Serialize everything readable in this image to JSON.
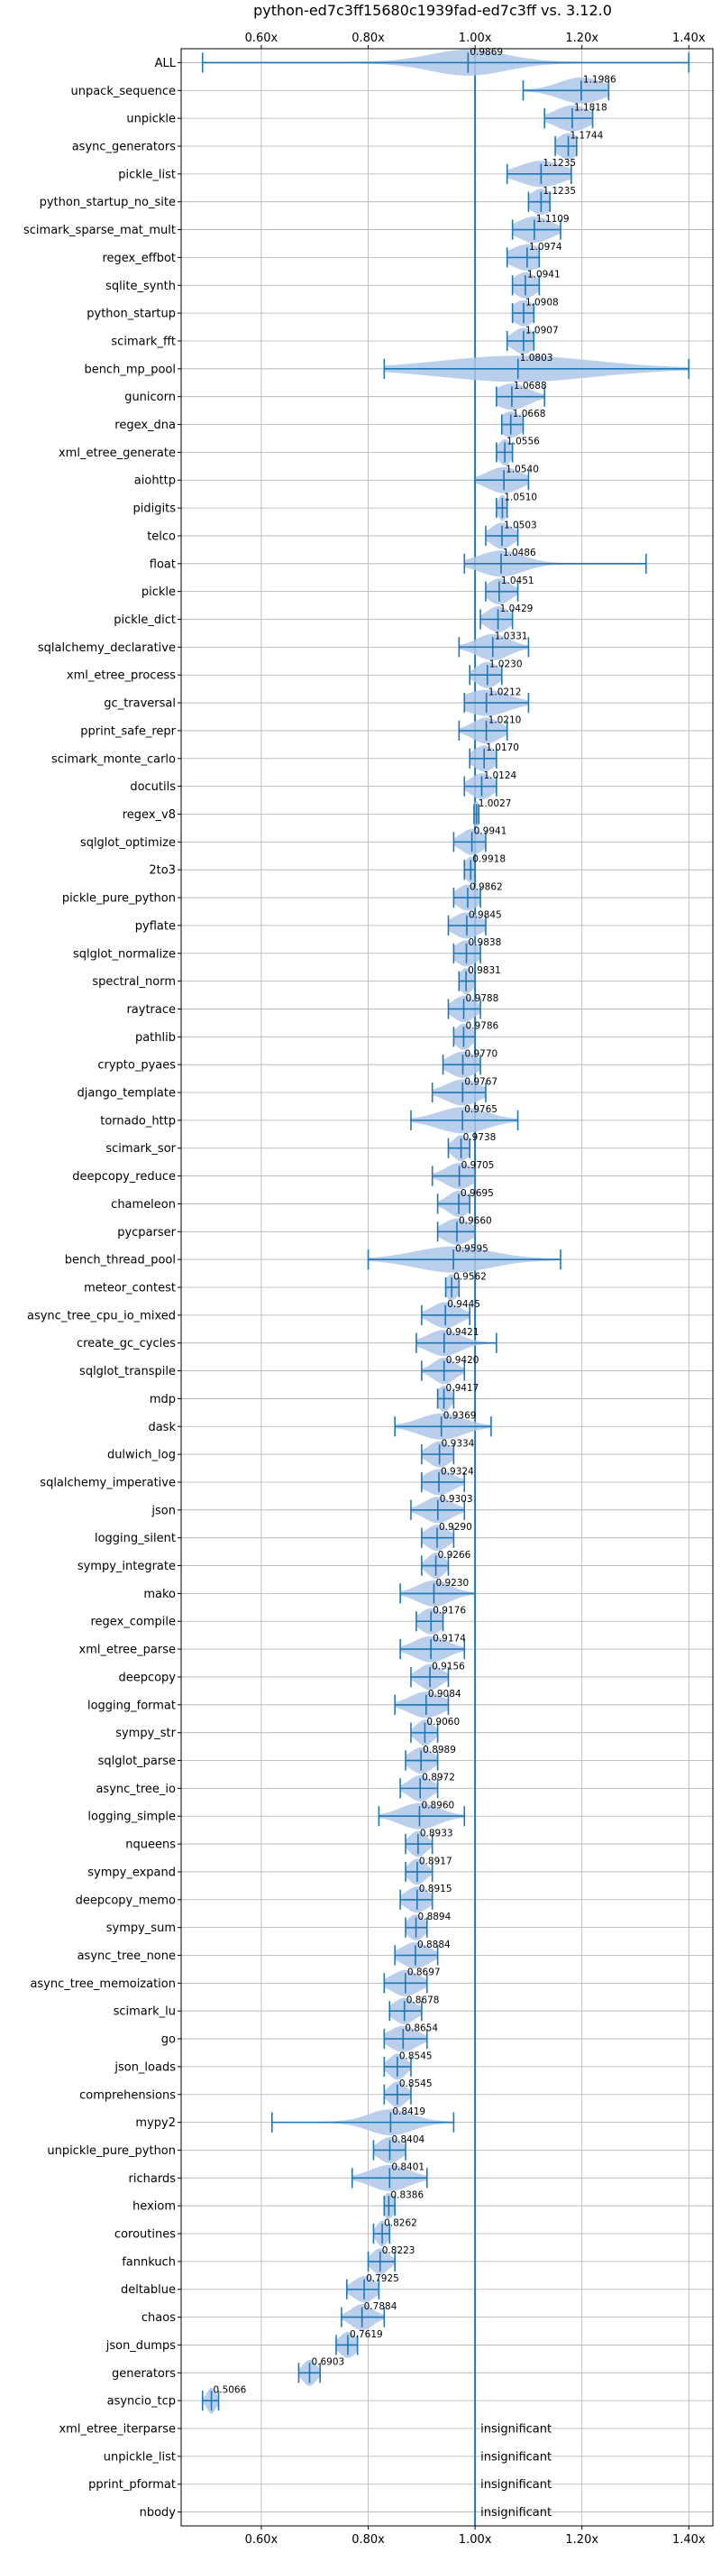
{
  "chart_data": {
    "type": "violin",
    "title": "python-ed7c3ff15680c1939fad-ed7c3ff vs. 3.12.0",
    "xlim": [
      0.45,
      1.445
    ],
    "xticks": [
      0.6,
      0.8,
      1.0,
      1.2,
      1.4
    ],
    "xtick_labels": [
      "0.60x",
      "0.80x",
      "1.00x",
      "1.20x",
      "1.40x"
    ],
    "reference_line": 1.0,
    "grid": true,
    "colors": {
      "violin": "#aec7e8",
      "line": "#1f77b4",
      "grid": "#b0b0b0"
    },
    "insignificant_label": "insignificant",
    "benchmarks": [
      {
        "name": "ALL",
        "mean": 0.9869,
        "label": "0.9869",
        "min": 0.49,
        "max": 1.4,
        "spread": 0.07
      },
      {
        "name": "unpack_sequence",
        "mean": 1.1986,
        "label": "1.1986",
        "min": 1.09,
        "max": 1.25,
        "spread": 0.04
      },
      {
        "name": "unpickle",
        "mean": 1.1818,
        "label": "1.1818",
        "min": 1.13,
        "max": 1.22,
        "spread": 0.03
      },
      {
        "name": "async_generators",
        "mean": 1.1744,
        "label": "1.1744",
        "min": 1.15,
        "max": 1.19,
        "spread": 0.02
      },
      {
        "name": "pickle_list",
        "mean": 1.1235,
        "label": "1.1235",
        "min": 1.06,
        "max": 1.18,
        "spread": 0.04
      },
      {
        "name": "python_startup_no_site",
        "mean": 1.1235,
        "label": "1.1235",
        "min": 1.1,
        "max": 1.14,
        "spread": 0.02
      },
      {
        "name": "scimark_sparse_mat_mult",
        "mean": 1.1109,
        "label": "1.1109",
        "min": 1.07,
        "max": 1.16,
        "spread": 0.03
      },
      {
        "name": "regex_effbot",
        "mean": 1.0974,
        "label": "1.0974",
        "min": 1.06,
        "max": 1.12,
        "spread": 0.03
      },
      {
        "name": "sqlite_synth",
        "mean": 1.0941,
        "label": "1.0941",
        "min": 1.07,
        "max": 1.12,
        "spread": 0.02
      },
      {
        "name": "python_startup",
        "mean": 1.0908,
        "label": "1.0908",
        "min": 1.07,
        "max": 1.11,
        "spread": 0.02
      },
      {
        "name": "scimark_fft",
        "mean": 1.0907,
        "label": "1.0907",
        "min": 1.06,
        "max": 1.11,
        "spread": 0.02
      },
      {
        "name": "bench_mp_pool",
        "mean": 1.0803,
        "label": "1.0803",
        "min": 0.83,
        "max": 1.4,
        "spread": 0.14
      },
      {
        "name": "gunicorn",
        "mean": 1.0688,
        "label": "1.0688",
        "min": 1.04,
        "max": 1.13,
        "spread": 0.03
      },
      {
        "name": "regex_dna",
        "mean": 1.0668,
        "label": "1.0668",
        "min": 1.05,
        "max": 1.09,
        "spread": 0.02
      },
      {
        "name": "xml_etree_generate",
        "mean": 1.0556,
        "label": "1.0556",
        "min": 1.04,
        "max": 1.07,
        "spread": 0.012
      },
      {
        "name": "aiohttp",
        "mean": 1.054,
        "label": "1.0540",
        "min": 1.0,
        "max": 1.1,
        "spread": 0.03
      },
      {
        "name": "pidigits",
        "mean": 1.051,
        "label": "1.0510",
        "min": 1.04,
        "max": 1.06,
        "spread": 0.008
      },
      {
        "name": "telco",
        "mean": 1.0503,
        "label": "1.0503",
        "min": 1.02,
        "max": 1.08,
        "spread": 0.02
      },
      {
        "name": "float",
        "mean": 1.0486,
        "label": "1.0486",
        "min": 0.98,
        "max": 1.32,
        "spread": 0.04
      },
      {
        "name": "pickle",
        "mean": 1.0451,
        "label": "1.0451",
        "min": 1.02,
        "max": 1.08,
        "spread": 0.02
      },
      {
        "name": "pickle_dict",
        "mean": 1.0429,
        "label": "1.0429",
        "min": 1.01,
        "max": 1.07,
        "spread": 0.02
      },
      {
        "name": "sqlalchemy_declarative",
        "mean": 1.0331,
        "label": "1.0331",
        "min": 0.97,
        "max": 1.1,
        "spread": 0.03
      },
      {
        "name": "xml_etree_process",
        "mean": 1.023,
        "label": "1.0230",
        "min": 0.99,
        "max": 1.05,
        "spread": 0.02
      },
      {
        "name": "gc_traversal",
        "mean": 1.0212,
        "label": "1.0212",
        "min": 0.98,
        "max": 1.1,
        "spread": 0.04
      },
      {
        "name": "pprint_safe_repr",
        "mean": 1.021,
        "label": "1.0210",
        "min": 0.97,
        "max": 1.06,
        "spread": 0.025
      },
      {
        "name": "scimark_monte_carlo",
        "mean": 1.017,
        "label": "1.0170",
        "min": 0.99,
        "max": 1.04,
        "spread": 0.02
      },
      {
        "name": "docutils",
        "mean": 1.0124,
        "label": "1.0124",
        "min": 0.98,
        "max": 1.04,
        "spread": 0.02
      },
      {
        "name": "regex_v8",
        "mean": 1.0027,
        "label": "1.0027",
        "min": 0.998,
        "max": 1.007,
        "spread": 0.006
      },
      {
        "name": "sqlglot_optimize",
        "mean": 0.9941,
        "label": "0.9941",
        "min": 0.96,
        "max": 1.02,
        "spread": 0.02
      },
      {
        "name": "2to3",
        "mean": 0.9918,
        "label": "0.9918",
        "min": 0.98,
        "max": 1.0,
        "spread": 0.01
      },
      {
        "name": "pickle_pure_python",
        "mean": 0.9862,
        "label": "0.9862",
        "min": 0.96,
        "max": 1.01,
        "spread": 0.02
      },
      {
        "name": "pyflate",
        "mean": 0.9845,
        "label": "0.9845",
        "min": 0.95,
        "max": 1.02,
        "spread": 0.025
      },
      {
        "name": "sqlglot_normalize",
        "mean": 0.9838,
        "label": "0.9838",
        "min": 0.96,
        "max": 1.01,
        "spread": 0.02
      },
      {
        "name": "spectral_norm",
        "mean": 0.9831,
        "label": "0.9831",
        "min": 0.97,
        "max": 1.0,
        "spread": 0.012
      },
      {
        "name": "raytrace",
        "mean": 0.9788,
        "label": "0.9788",
        "min": 0.95,
        "max": 1.01,
        "spread": 0.02
      },
      {
        "name": "pathlib",
        "mean": 0.9786,
        "label": "0.9786",
        "min": 0.96,
        "max": 1.0,
        "spread": 0.015
      },
      {
        "name": "crypto_pyaes",
        "mean": 0.977,
        "label": "0.9770",
        "min": 0.94,
        "max": 1.01,
        "spread": 0.025
      },
      {
        "name": "django_template",
        "mean": 0.9767,
        "label": "0.9767",
        "min": 0.92,
        "max": 1.02,
        "spread": 0.03
      },
      {
        "name": "tornado_http",
        "mean": 0.9765,
        "label": "0.9765",
        "min": 0.88,
        "max": 1.08,
        "spread": 0.045
      },
      {
        "name": "scimark_sor",
        "mean": 0.9738,
        "label": "0.9738",
        "min": 0.95,
        "max": 0.99,
        "spread": 0.015
      },
      {
        "name": "deepcopy_reduce",
        "mean": 0.9705,
        "label": "0.9705",
        "min": 0.92,
        "max": 1.0,
        "spread": 0.025
      },
      {
        "name": "chameleon",
        "mean": 0.9695,
        "label": "0.9695",
        "min": 0.93,
        "max": 0.99,
        "spread": 0.02
      },
      {
        "name": "pycparser",
        "mean": 0.966,
        "label": "0.9660",
        "min": 0.93,
        "max": 1.0,
        "spread": 0.025
      },
      {
        "name": "bench_thread_pool",
        "mean": 0.9595,
        "label": "0.9595",
        "min": 0.8,
        "max": 1.16,
        "spread": 0.07
      },
      {
        "name": "meteor_contest",
        "mean": 0.9562,
        "label": "0.9562",
        "min": 0.945,
        "max": 0.97,
        "spread": 0.012
      },
      {
        "name": "async_tree_cpu_io_mixed",
        "mean": 0.9445,
        "label": "0.9445",
        "min": 0.9,
        "max": 0.99,
        "spread": 0.025
      },
      {
        "name": "create_gc_cycles",
        "mean": 0.9421,
        "label": "0.9421",
        "min": 0.89,
        "max": 1.04,
        "spread": 0.03
      },
      {
        "name": "sqlglot_transpile",
        "mean": 0.942,
        "label": "0.9420",
        "min": 0.9,
        "max": 0.98,
        "spread": 0.02
      },
      {
        "name": "mdp",
        "mean": 0.9417,
        "label": "0.9417",
        "min": 0.93,
        "max": 0.96,
        "spread": 0.012
      },
      {
        "name": "dask",
        "mean": 0.9369,
        "label": "0.9369",
        "min": 0.85,
        "max": 1.03,
        "spread": 0.04
      },
      {
        "name": "dulwich_log",
        "mean": 0.9334,
        "label": "0.9334",
        "min": 0.9,
        "max": 0.96,
        "spread": 0.02
      },
      {
        "name": "sqlalchemy_imperative",
        "mean": 0.9324,
        "label": "0.9324",
        "min": 0.9,
        "max": 0.98,
        "spread": 0.025
      },
      {
        "name": "json",
        "mean": 0.9303,
        "label": "0.9303",
        "min": 0.88,
        "max": 0.98,
        "spread": 0.025
      },
      {
        "name": "logging_silent",
        "mean": 0.929,
        "label": "0.9290",
        "min": 0.9,
        "max": 0.96,
        "spread": 0.02
      },
      {
        "name": "sympy_integrate",
        "mean": 0.9266,
        "label": "0.9266",
        "min": 0.9,
        "max": 0.95,
        "spread": 0.015
      },
      {
        "name": "mako",
        "mean": 0.923,
        "label": "0.9230",
        "min": 0.86,
        "max": 1.0,
        "spread": 0.03
      },
      {
        "name": "regex_compile",
        "mean": 0.9176,
        "label": "0.9176",
        "min": 0.89,
        "max": 0.94,
        "spread": 0.02
      },
      {
        "name": "xml_etree_parse",
        "mean": 0.9174,
        "label": "0.9174",
        "min": 0.86,
        "max": 0.98,
        "spread": 0.03
      },
      {
        "name": "deepcopy",
        "mean": 0.9156,
        "label": "0.9156",
        "min": 0.88,
        "max": 0.95,
        "spread": 0.02
      },
      {
        "name": "logging_format",
        "mean": 0.9084,
        "label": "0.9084",
        "min": 0.85,
        "max": 0.95,
        "spread": 0.03
      },
      {
        "name": "sympy_str",
        "mean": 0.906,
        "label": "0.9060",
        "min": 0.88,
        "max": 0.93,
        "spread": 0.015
      },
      {
        "name": "sqlglot_parse",
        "mean": 0.8989,
        "label": "0.8989",
        "min": 0.87,
        "max": 0.93,
        "spread": 0.02
      },
      {
        "name": "async_tree_io",
        "mean": 0.8972,
        "label": "0.8972",
        "min": 0.86,
        "max": 0.93,
        "spread": 0.02
      },
      {
        "name": "logging_simple",
        "mean": 0.896,
        "label": "0.8960",
        "min": 0.82,
        "max": 0.98,
        "spread": 0.035
      },
      {
        "name": "nqueens",
        "mean": 0.8933,
        "label": "0.8933",
        "min": 0.87,
        "max": 0.92,
        "spread": 0.015
      },
      {
        "name": "sympy_expand",
        "mean": 0.8917,
        "label": "0.8917",
        "min": 0.87,
        "max": 0.92,
        "spread": 0.015
      },
      {
        "name": "deepcopy_memo",
        "mean": 0.8915,
        "label": "0.8915",
        "min": 0.86,
        "max": 0.92,
        "spread": 0.02
      },
      {
        "name": "sympy_sum",
        "mean": 0.8894,
        "label": "0.8894",
        "min": 0.87,
        "max": 0.91,
        "spread": 0.015
      },
      {
        "name": "async_tree_none",
        "mean": 0.8884,
        "label": "0.8884",
        "min": 0.85,
        "max": 0.93,
        "spread": 0.025
      },
      {
        "name": "async_tree_memoization",
        "mean": 0.8697,
        "label": "0.8697",
        "min": 0.83,
        "max": 0.91,
        "spread": 0.025
      },
      {
        "name": "scimark_lu",
        "mean": 0.8678,
        "label": "0.8678",
        "min": 0.84,
        "max": 0.9,
        "spread": 0.02
      },
      {
        "name": "go",
        "mean": 0.8654,
        "label": "0.8654",
        "min": 0.83,
        "max": 0.91,
        "spread": 0.025
      },
      {
        "name": "json_loads",
        "mean": 0.8545,
        "label": "0.8545",
        "min": 0.83,
        "max": 0.88,
        "spread": 0.015
      },
      {
        "name": "comprehensions",
        "mean": 0.8545,
        "label": "0.8545",
        "min": 0.83,
        "max": 0.88,
        "spread": 0.015
      },
      {
        "name": "mypy2",
        "mean": 0.8419,
        "label": "0.8419",
        "min": 0.62,
        "max": 0.96,
        "spread": 0.04
      },
      {
        "name": "unpickle_pure_python",
        "mean": 0.8404,
        "label": "0.8404",
        "min": 0.81,
        "max": 0.87,
        "spread": 0.02
      },
      {
        "name": "richards",
        "mean": 0.8401,
        "label": "0.8401",
        "min": 0.77,
        "max": 0.91,
        "spread": 0.035
      },
      {
        "name": "hexiom",
        "mean": 0.8386,
        "label": "0.8386",
        "min": 0.83,
        "max": 0.85,
        "spread": 0.01
      },
      {
        "name": "coroutines",
        "mean": 0.8262,
        "label": "0.8262",
        "min": 0.81,
        "max": 0.84,
        "spread": 0.01
      },
      {
        "name": "fannkuch",
        "mean": 0.8223,
        "label": "0.8223",
        "min": 0.8,
        "max": 0.85,
        "spread": 0.015
      },
      {
        "name": "deltablue",
        "mean": 0.7925,
        "label": "0.7925",
        "min": 0.76,
        "max": 0.82,
        "spread": 0.02
      },
      {
        "name": "chaos",
        "mean": 0.7884,
        "label": "0.7884",
        "min": 0.75,
        "max": 0.83,
        "spread": 0.02
      },
      {
        "name": "json_dumps",
        "mean": 0.7619,
        "label": "0.7619",
        "min": 0.74,
        "max": 0.78,
        "spread": 0.015
      },
      {
        "name": "generators",
        "mean": 0.6903,
        "label": "0.6903",
        "min": 0.67,
        "max": 0.71,
        "spread": 0.012
      },
      {
        "name": "asyncio_tcp",
        "mean": 0.5066,
        "label": "0.5066",
        "min": 0.49,
        "max": 0.52,
        "spread": 0.008
      },
      {
        "name": "xml_etree_iterparse",
        "insignificant": true
      },
      {
        "name": "unpickle_list",
        "insignificant": true
      },
      {
        "name": "pprint_pformat",
        "insignificant": true
      },
      {
        "name": "nbody",
        "insignificant": true
      }
    ]
  }
}
